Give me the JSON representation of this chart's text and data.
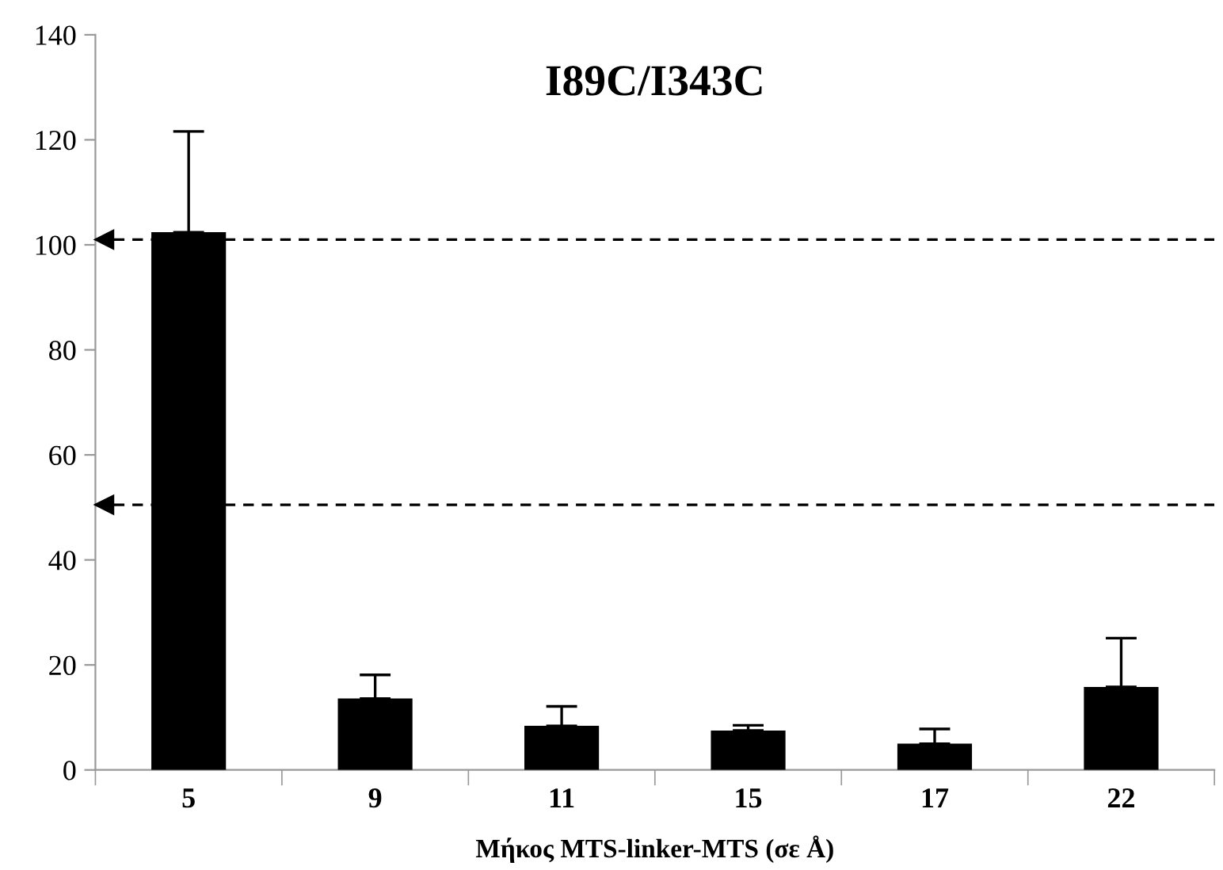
{
  "chart_data": {
    "type": "bar",
    "title": "I89C/I343C",
    "xlabel": "Μήκος MTS-linker-MTS (σε Å)",
    "categories": [
      "5",
      "9",
      "11",
      "15",
      "17",
      "22"
    ],
    "values": [
      102.4,
      13.6,
      8.4,
      7.5,
      5.0,
      15.8
    ],
    "errors": [
      [
        102.4,
        121.6
      ],
      [
        13.6,
        18.1
      ],
      [
        8.4,
        12.1
      ],
      [
        7.5,
        8.5
      ],
      [
        5.0,
        7.8
      ],
      [
        15.8,
        25.1
      ]
    ],
    "color": "#000000",
    "ylim": [
      0,
      140
    ],
    "yticks": [
      0,
      20,
      40,
      60,
      80,
      100,
      120,
      140
    ],
    "ref_lines": [
      {
        "axis": "y",
        "value": 101,
        "color": "#000000",
        "line_style": "dashed"
      },
      {
        "axis": "y",
        "value": 50.5,
        "color": "#000000",
        "line_style": "dashed"
      }
    ],
    "grid": false,
    "legend": false
  }
}
